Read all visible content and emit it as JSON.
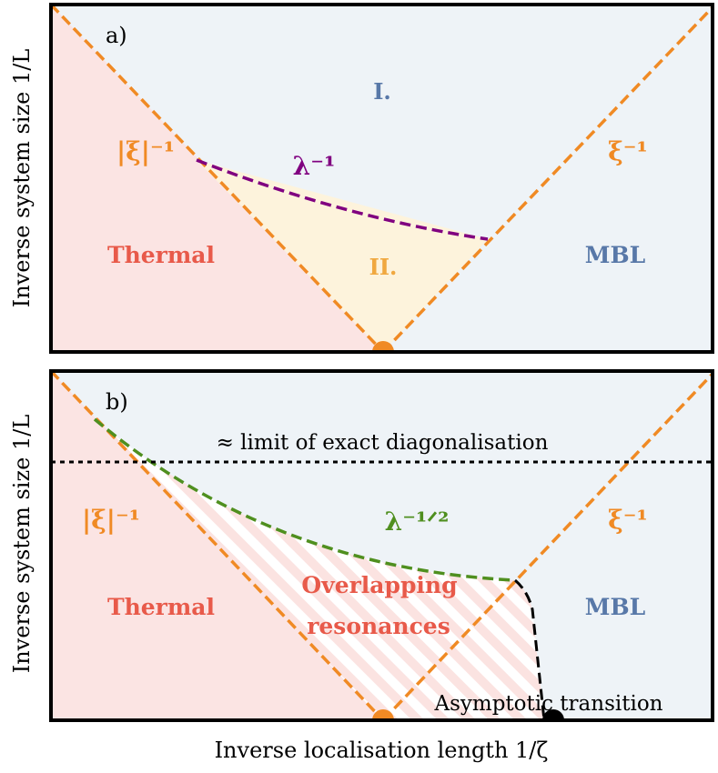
{
  "colors": {
    "thermal_fill": "#fbe4e3",
    "mbl_fill": "#eef3f7",
    "region2_fill": "#fdf3dc",
    "hatch_stripe": "#fbe3e1",
    "orange": "#f08a24",
    "purple": "#800080",
    "green": "#4f8f1f",
    "blue": "#5878a8",
    "red": "#e85a4a",
    "black": "#000000"
  },
  "panel_a": {
    "tag": "a)",
    "region1_label": "I.",
    "region2_label": "II.",
    "thermal_label": "Thermal",
    "mbl_label": "MBL",
    "left_line_label": "|ξ|⁻¹",
    "right_line_label": "ξ⁻¹",
    "curve_label": "λ⁻¹"
  },
  "panel_b": {
    "tag": "b)",
    "limit_label": "≈ limit of exact diagonalisation",
    "thermal_label": "Thermal",
    "mbl_label": "MBL",
    "left_line_label": "|ξ|⁻¹",
    "right_line_label": "ξ⁻¹",
    "curve_label": "λ⁻¹ᐟ²",
    "overlap_line1": "Overlapping",
    "overlap_line2": "resonances",
    "asymptotic_label": "Asymptotic transition"
  },
  "axes": {
    "y_label": "Inverse system size 1/L",
    "x_label": "Inverse localisation length 1/ζ"
  }
}
